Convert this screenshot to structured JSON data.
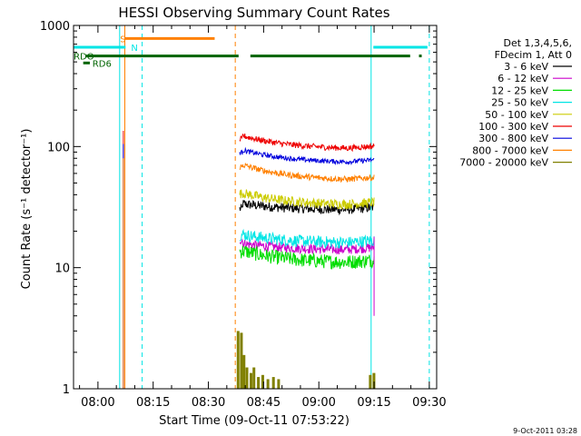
{
  "chart_data": {
    "type": "line",
    "title": "HESSI Observing Summary Count Rates",
    "xlabel": "Start Time (09-Oct-11 07:53:22)",
    "ylabel": "Count Rate (s⁻¹ detector⁻¹)",
    "yscale": "log",
    "ylim": [
      1,
      1000
    ],
    "xlim_min": [
      53.37,
      152.0
    ],
    "x_unit": "minutes after 07:00 UT",
    "x_ticks": [
      {
        "min": 60,
        "label": "08:00"
      },
      {
        "min": 75,
        "label": "08:15"
      },
      {
        "min": 90,
        "label": "08:30"
      },
      {
        "min": 105,
        "label": "08:45"
      },
      {
        "min": 120,
        "label": "09:00"
      },
      {
        "min": 135,
        "label": "09:15"
      },
      {
        "min": 150,
        "label": "09:30"
      }
    ],
    "y_ticks": [
      {
        "v": 1,
        "label": "1"
      },
      {
        "v": 10,
        "label": "10"
      },
      {
        "v": 100,
        "label": "100"
      },
      {
        "v": 1000,
        "label": "1000"
      }
    ],
    "legend": {
      "placement": "right",
      "header": [
        "Det 1,3,4,5,6,",
        "FDecim 1, Att 0"
      ]
    },
    "series": [
      {
        "name": "3 - 6 keV",
        "color": "#000000",
        "start": 34,
        "end": 30,
        "peak": 36,
        "noise": 0.08
      },
      {
        "name": "6 - 12 keV",
        "color": "#cc00cc",
        "start": 16,
        "end": 14,
        "peak": 20,
        "noise": 0.08
      },
      {
        "name": "12 - 25 keV",
        "color": "#00dd00",
        "start": 14,
        "end": 11,
        "peak": 16,
        "noise": 0.12
      },
      {
        "name": "25 - 50 keV",
        "color": "#00e5e5",
        "start": 19,
        "end": 16,
        "peak": 22,
        "noise": 0.1
      },
      {
        "name": "50 - 100 keV",
        "color": "#cccc00",
        "start": 42,
        "end": 33,
        "peak": 48,
        "noise": 0.08
      },
      {
        "name": "100 - 300 keV",
        "color": "#ee0000",
        "start": 125,
        "end": 96,
        "peak": 135,
        "noise": 0.05
      },
      {
        "name": "300 - 800 keV",
        "color": "#0000dd",
        "start": 95,
        "end": 74,
        "peak": 105,
        "noise": 0.04
      },
      {
        "name": "800 - 7000 keV",
        "color": "#ff8000",
        "start": 72,
        "end": 53,
        "peak": 80,
        "noise": 0.05
      },
      {
        "name": "7000 - 20000 keV",
        "color": "#808000",
        "start": 1.5,
        "end": 1.3,
        "peak": 3,
        "noise": 0.3
      }
    ],
    "data_window_min": [
      98.5,
      135.0
    ],
    "flags": [
      {
        "label": "S",
        "color": "#ff8000",
        "from": 67.2,
        "to": 91.7,
        "level": 780,
        "label_at": 66.0
      },
      {
        "label": "N",
        "color": "#00e5e5",
        "from": 53.37,
        "to": 67.5,
        "level": 660,
        "label_at": 69.0
      },
      {
        "label": "N",
        "color": "#00e5e5",
        "from": 134.8,
        "to": 149.5,
        "level": 660,
        "label_at": null
      },
      {
        "label": "RDO",
        "color": "#006400",
        "from": 56.8,
        "to": 98.2,
        "level": 560,
        "label_at": 53.4
      },
      {
        "label": "RDO",
        "color": "#006400",
        "from": 101.4,
        "to": 144.8,
        "level": 560,
        "label_at": null
      },
      {
        "label": "RD6",
        "color": "#006400",
        "from": 56.0,
        "to": 57.8,
        "level": 490,
        "label_at": 58.5
      }
    ],
    "vertical_lines": [
      {
        "min": 65.9,
        "color": "#00e5e5",
        "style": "solid"
      },
      {
        "min": 67.3,
        "color": "#ff8000",
        "style": "solid"
      },
      {
        "min": 72.0,
        "color": "#00e5e5",
        "style": "dashed"
      },
      {
        "min": 97.3,
        "color": "#ff8000",
        "style": "dashed"
      },
      {
        "min": 134.2,
        "color": "#00e5e5",
        "style": "solid"
      },
      {
        "min": 150.0,
        "color": "#00e5e5",
        "style": "dashed"
      }
    ],
    "footer_date": "9-Oct-2011 03:28"
  }
}
